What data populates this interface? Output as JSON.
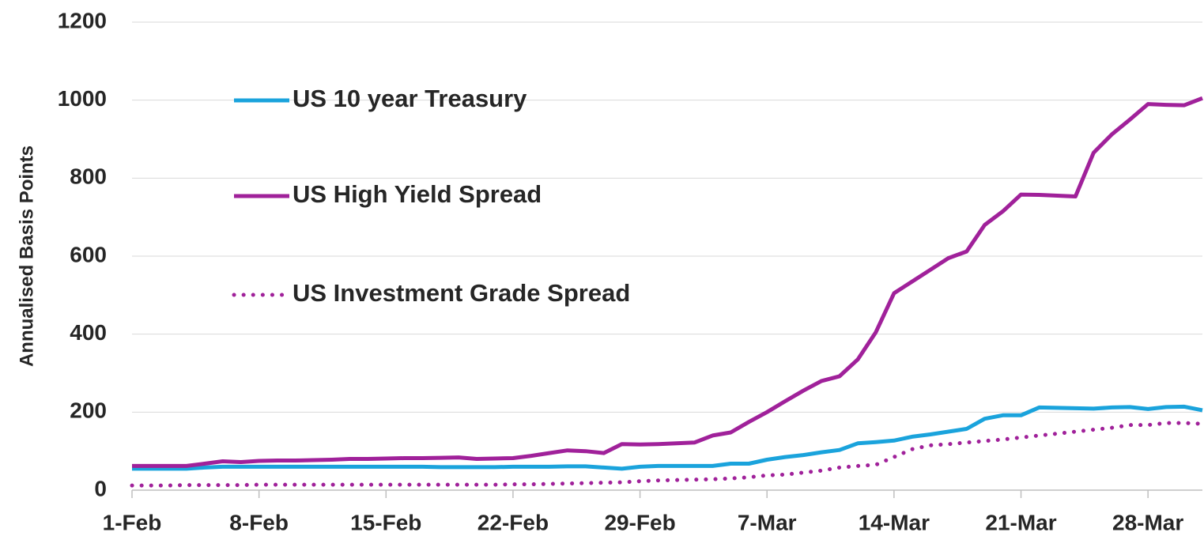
{
  "chart_data": {
    "type": "line",
    "y_label": "Annualised Basis Points",
    "categories": [
      "1-Feb",
      null,
      null,
      null,
      null,
      null,
      null,
      "8-Feb",
      null,
      null,
      null,
      null,
      null,
      null,
      "15-Feb",
      null,
      null,
      null,
      null,
      null,
      null,
      "22-Feb",
      null,
      null,
      null,
      null,
      null,
      null,
      "29-Feb",
      null,
      null,
      null,
      null,
      null,
      null,
      "7-Mar",
      null,
      null,
      null,
      null,
      null,
      null,
      "14-Mar",
      null,
      null,
      null,
      null,
      null,
      null,
      "21-Mar",
      null,
      null,
      null,
      null,
      null,
      null,
      "28-Mar",
      null,
      null,
      null
    ],
    "series": [
      {
        "name": "US 10 year Treasury",
        "color": "#1aa3dc",
        "dash": "solid",
        "values": [
          55,
          55,
          55,
          55,
          58,
          60,
          60,
          60,
          60,
          60,
          60,
          60,
          60,
          60,
          60,
          60,
          60,
          59,
          59,
          59,
          59,
          60,
          60,
          60,
          61,
          61,
          58,
          55,
          60,
          62,
          62,
          62,
          62,
          68,
          68,
          78,
          85,
          90,
          97,
          103,
          120,
          123,
          127,
          137,
          143,
          150,
          157,
          183,
          192,
          192,
          212,
          211,
          210,
          209,
          212,
          213,
          208,
          213,
          214,
          205
        ]
      },
      {
        "name": "US High Yield Spread",
        "color": "#a0219a",
        "dash": "solid",
        "values": [
          62,
          62,
          62,
          62,
          68,
          74,
          72,
          75,
          76,
          76,
          77,
          78,
          80,
          80,
          81,
          82,
          82,
          83,
          84,
          80,
          81,
          82,
          88,
          95,
          102,
          100,
          95,
          118,
          117,
          118,
          120,
          122,
          140,
          148,
          175,
          200,
          228,
          255,
          280,
          292,
          335,
          405,
          505,
          535,
          565,
          595,
          612,
          680,
          715,
          758,
          757,
          755,
          753,
          865,
          912,
          950,
          990,
          988,
          987,
          1005
        ]
      },
      {
        "name": "US Investment Grade Spread",
        "color": "#a0219a",
        "dash": "dotted",
        "values": [
          12,
          12,
          12,
          13,
          13,
          13,
          13,
          14,
          14,
          14,
          14,
          14,
          14,
          14,
          14,
          14,
          14,
          14,
          14,
          14,
          14,
          15,
          15,
          16,
          17,
          18,
          19,
          20,
          23,
          25,
          26,
          27,
          28,
          30,
          33,
          38,
          40,
          45,
          50,
          58,
          62,
          65,
          85,
          105,
          115,
          118,
          122,
          126,
          130,
          135,
          140,
          145,
          150,
          155,
          160,
          167,
          167,
          172,
          172,
          170
        ]
      }
    ],
    "ylim": [
      0,
      1200
    ],
    "yticks": [
      0,
      200,
      400,
      600,
      800,
      1000,
      1200
    ],
    "grid": true
  }
}
